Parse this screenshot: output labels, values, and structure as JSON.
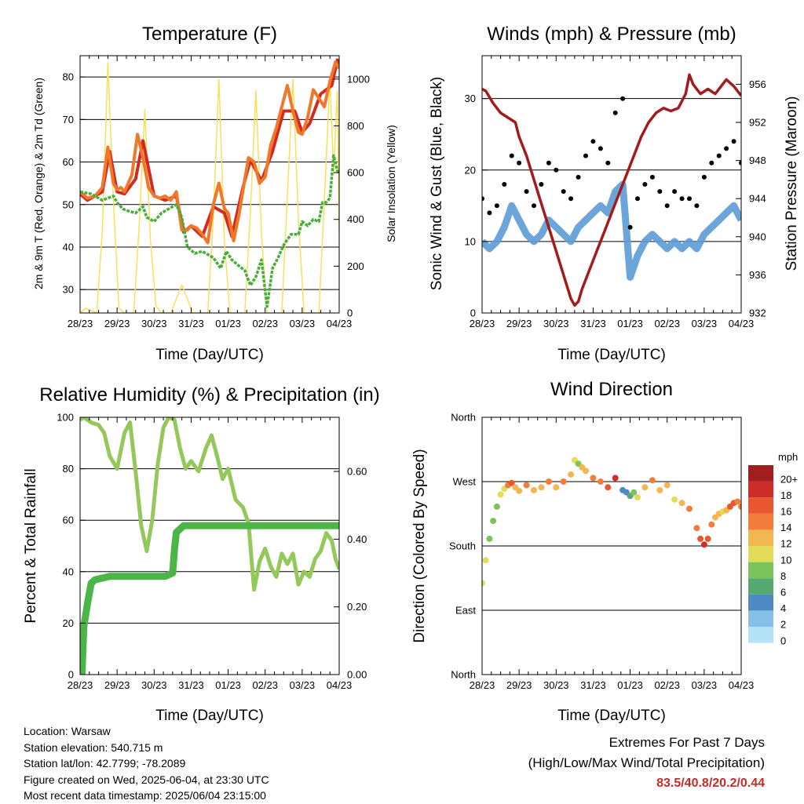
{
  "info": {
    "location": "Location: Warsaw",
    "elevation": "Station elevation: 540.715 m",
    "latlon": "Station lat/lon: 42.7799; -78.2089",
    "created": "Figure created on Wed, 2025-06-04, at 23:30 UTC",
    "recent": "Most recent data timestamp: 2025/06/04 23:15:00"
  },
  "extremes": {
    "title": "Extremes For Past 7 Days",
    "subtitle": "(High/Low/Max Wind/Total Precipitation)",
    "values": "83.5/40.8/20.2/0.44",
    "color": "#c42b2b"
  },
  "colors": {
    "temp_2m": "#d42a1e",
    "temp_9m": "#f0782a",
    "dewpoint": "#4bad3a",
    "solar": "#f7e05a",
    "wind": "#5b9bd5",
    "gust": "#000000",
    "pressure": "#a11d1d",
    "rh": "#94c85a",
    "precip": "#4bb548"
  },
  "chart_data": [
    {
      "id": "temperature",
      "type": "line",
      "title": "Temperature (F)",
      "xlabel": "Time (Day/UTC)",
      "ylabel": "2m & 9m T (Red, Orange) & 2m Td (Green)",
      "ylabel_right": "Solar Insolation (Yellow)",
      "x_ticks": [
        "28/23",
        "29/23",
        "30/23",
        "31/23",
        "01/23",
        "02/23",
        "03/23",
        "04/23"
      ],
      "xlim": [
        0,
        7
      ],
      "ylim": [
        24.5,
        85
      ],
      "y_ticks": [
        30,
        40,
        50,
        60,
        70,
        80
      ],
      "ylim_right": [
        0,
        1100
      ],
      "y_ticks_right": [
        0,
        200,
        400,
        600,
        800,
        1000
      ],
      "grid": "horizontal",
      "series": [
        {
          "axis": "left",
          "x": [
            0,
            0.2,
            0.4,
            0.6,
            0.75,
            0.9,
            1.0,
            1.1,
            1.2,
            1.4,
            1.55,
            1.7,
            1.85,
            2.0,
            2.15,
            2.3,
            2.45,
            2.6,
            2.75,
            2.9,
            3.0,
            3.15,
            3.3,
            3.45,
            3.6,
            3.75,
            3.9,
            4.0,
            4.15,
            4.3,
            4.45,
            4.55,
            4.7,
            4.85,
            5.0,
            5.15,
            5.3,
            5.45,
            5.6,
            5.75,
            5.9,
            6.0,
            6.15,
            6.3,
            6.45,
            6.6,
            6.75,
            6.9,
            7.0
          ],
          "values": [
            53,
            51.5,
            52,
            54,
            63.5,
            55,
            53.5,
            54,
            53,
            57,
            66.5,
            61,
            54,
            52,
            51.5,
            52,
            51,
            53,
            44,
            44,
            45,
            44.5,
            43,
            41,
            50,
            55,
            49,
            48,
            41.5,
            48,
            56,
            61,
            60,
            55,
            56.5,
            64,
            68,
            73,
            78,
            72,
            67,
            66.5,
            70.5,
            77,
            75,
            73,
            79,
            83.5,
            82
          ]
        },
        {
          "axis": "left",
          "x": [
            0,
            0.2,
            0.6,
            0.8,
            1.0,
            1.2,
            1.5,
            1.7,
            2.0,
            2.3,
            2.6,
            2.8,
            3.0,
            3.3,
            3.6,
            3.9,
            4.1,
            4.4,
            4.6,
            4.9,
            5.2,
            5.5,
            5.8,
            6.0,
            6.2,
            6.5,
            6.8,
            6.95,
            7.0
          ],
          "values": [
            52.5,
            51,
            53,
            62.5,
            53,
            52.5,
            56,
            65,
            52,
            51,
            52,
            43.5,
            45,
            42.5,
            49.5,
            48,
            42.5,
            54,
            60.5,
            55.5,
            62.5,
            72,
            72,
            67,
            69,
            76,
            78,
            84,
            82
          ]
        },
        {
          "axis": "left",
          "x": [
            0,
            0.3,
            0.6,
            0.9,
            1.0,
            1.15,
            1.3,
            1.5,
            1.7,
            1.8,
            2.0,
            2.2,
            2.4,
            2.6,
            2.75,
            2.9,
            3.1,
            3.3,
            3.6,
            3.8,
            3.95,
            4.1,
            4.3,
            4.45,
            4.6,
            4.75,
            4.9,
            5.05,
            5.2,
            5.35,
            5.5,
            5.7,
            5.9,
            6.0,
            6.15,
            6.3,
            6.45,
            6.55,
            6.65,
            6.75,
            6.85,
            6.95,
            7.0
          ],
          "values": [
            53,
            52.5,
            51,
            52,
            50.5,
            49,
            48.5,
            48,
            49.5,
            47,
            46,
            48,
            49,
            50,
            47,
            40,
            38.5,
            39,
            37.5,
            35,
            39,
            37,
            35.5,
            34.5,
            31,
            33,
            37,
            26,
            35,
            37.5,
            40.5,
            43,
            43,
            46,
            45,
            46.5,
            46,
            50.5,
            50.5,
            51.5,
            61.5,
            58,
            57.5
          ]
        },
        {
          "axis": "right",
          "x": [
            0,
            0.15,
            0.45,
            0.6,
            0.75,
            0.9,
            1.05,
            1.2,
            1.45,
            1.6,
            1.75,
            1.9,
            2.05,
            2.2,
            2.45,
            2.6,
            2.75,
            2.9,
            3.05,
            3.2,
            3.45,
            3.6,
            3.75,
            3.9,
            4.05,
            4.2,
            4.45,
            4.6,
            4.75,
            4.9,
            5.05,
            5.2,
            5.45,
            5.6,
            5.75,
            5.9,
            6.05,
            6.2,
            6.45,
            6.6,
            6.75,
            6.85,
            6.95,
            7.0
          ],
          "values": [
            0,
            20,
            0,
            350,
            1070,
            480,
            20,
            0,
            0,
            380,
            870,
            310,
            30,
            0,
            0,
            60,
            120,
            60,
            0,
            0,
            0,
            410,
            1000,
            300,
            0,
            0,
            0,
            430,
            950,
            340,
            0,
            0,
            0,
            500,
            1000,
            400,
            0,
            0,
            0,
            480,
            1000,
            600,
            950,
            350
          ]
        }
      ]
    },
    {
      "id": "winds",
      "type": "line",
      "title": "Winds (mph) & Pressure (mb)",
      "xlabel": "Time (Day/UTC)",
      "ylabel": "Sonic Wind & Gust (Blue, Black)",
      "ylabel_right": "Station Pressure (Maroon)",
      "x_ticks": [
        "28/23",
        "29/23",
        "30/23",
        "31/23",
        "01/23",
        "02/23",
        "03/23",
        "04/23"
      ],
      "xlim": [
        0,
        7
      ],
      "ylim": [
        0,
        36
      ],
      "y_ticks": [
        0,
        10,
        20,
        30
      ],
      "ylim_right": [
        932,
        959
      ],
      "y_ticks_right": [
        932,
        936,
        940,
        944,
        948,
        952,
        956
      ],
      "grid": "horizontal",
      "series": [
        {
          "axis": "left",
          "x": [
            0,
            0.2,
            0.4,
            0.6,
            0.8,
            1.0,
            1.2,
            1.4,
            1.6,
            1.8,
            2.0,
            2.2,
            2.4,
            2.6,
            2.8,
            3.0,
            3.2,
            3.4,
            3.6,
            3.8,
            4.0,
            4.2,
            4.4,
            4.6,
            4.8,
            5.0,
            5.2,
            5.4,
            5.6,
            5.8,
            6.0,
            6.2,
            6.4,
            6.6,
            6.8,
            7.0
          ],
          "values": [
            10,
            9,
            10,
            12,
            15,
            13,
            11,
            10,
            11,
            13,
            12,
            11,
            10,
            12,
            13,
            14,
            15,
            14,
            17,
            18,
            5,
            8,
            10,
            11,
            10,
            9,
            10,
            9,
            10,
            9,
            11,
            12,
            13,
            14,
            15,
            13
          ]
        },
        {
          "axis": "left",
          "x": [
            0,
            0.2,
            0.4,
            0.6,
            0.8,
            1.0,
            1.2,
            1.4,
            1.6,
            1.8,
            2.0,
            2.2,
            2.4,
            2.6,
            2.8,
            3.0,
            3.2,
            3.4,
            3.6,
            3.8,
            4.0,
            4.2,
            4.4,
            4.6,
            4.8,
            5.0,
            5.2,
            5.4,
            5.6,
            5.8,
            6.0,
            6.2,
            6.4,
            6.6,
            6.8,
            7.0
          ],
          "values": [
            16,
            14,
            15,
            18,
            22,
            21,
            17,
            15,
            18,
            21,
            20,
            17,
            16,
            19,
            22,
            24,
            23,
            21,
            28,
            30,
            12,
            16,
            18,
            19,
            17,
            15,
            17,
            16,
            16,
            15,
            19,
            21,
            22,
            23,
            24,
            21
          ]
        },
        {
          "axis": "right",
          "x": [
            0,
            0.1,
            0.3,
            0.5,
            0.7,
            0.9,
            1.0,
            1.2,
            1.4,
            1.6,
            1.8,
            2.0,
            2.2,
            2.4,
            2.5,
            2.6,
            2.7,
            2.9,
            3.1,
            3.3,
            3.5,
            3.7,
            3.9,
            4.1,
            4.3,
            4.5,
            4.7,
            4.9,
            5.1,
            5.3,
            5.5,
            5.6,
            5.7,
            5.9,
            6.1,
            6.3,
            6.5,
            6.6,
            6.8,
            7.0
          ],
          "values": [
            955.5,
            955.3,
            954,
            953,
            952.5,
            952,
            950.5,
            948.5,
            946,
            943.5,
            941,
            938.5,
            936,
            933.5,
            932.8,
            933.2,
            934.5,
            936.5,
            938.5,
            940.5,
            942.5,
            944.5,
            946.5,
            948.5,
            950.5,
            952,
            953,
            953.5,
            953.2,
            953.5,
            955,
            957,
            956,
            955,
            955.5,
            955,
            956,
            956.5,
            955.8,
            954.8
          ]
        }
      ]
    },
    {
      "id": "humidity",
      "type": "line",
      "title": "Relative Humidity (%) & Precipitation (in)",
      "xlabel": "Time (Day/UTC)",
      "ylabel": "Percent & Total Rainfall",
      "x_ticks": [
        "28/23",
        "29/23",
        "30/23",
        "31/23",
        "01/23",
        "02/23",
        "03/23",
        "04/23"
      ],
      "xlim": [
        0,
        7
      ],
      "ylim": [
        0,
        100
      ],
      "y_ticks": [
        0,
        20,
        40,
        60,
        80,
        100
      ],
      "ylim_right": [
        0,
        0.76
      ],
      "y_ticks_right": [
        "0.00",
        "0.20",
        "0.40",
        "0.60"
      ],
      "grid": "horizontal",
      "series": [
        {
          "axis": "left",
          "x": [
            0,
            0.1,
            0.3,
            0.5,
            0.65,
            0.8,
            1.0,
            1.2,
            1.35,
            1.5,
            1.65,
            1.8,
            1.95,
            2.1,
            2.25,
            2.4,
            2.55,
            2.7,
            2.85,
            3.0,
            3.2,
            3.4,
            3.55,
            3.7,
            3.85,
            4.0,
            4.2,
            4.4,
            4.55,
            4.7,
            4.85,
            5.0,
            5.15,
            5.3,
            5.45,
            5.6,
            5.75,
            5.9,
            6.05,
            6.2,
            6.35,
            6.5,
            6.65,
            6.8,
            6.9,
            7.0
          ],
          "values": [
            99,
            100,
            98,
            97,
            94,
            85,
            80,
            94,
            98,
            79,
            58,
            48,
            60,
            82,
            96,
            100,
            99,
            88,
            80,
            83,
            79,
            88,
            93,
            85,
            76,
            80,
            68,
            65,
            59,
            33,
            44,
            49,
            42,
            38,
            47,
            43,
            47,
            35,
            40,
            38,
            45,
            48,
            55,
            52,
            45,
            41
          ]
        },
        {
          "axis": "right",
          "x": [
            0,
            0.05,
            0.1,
            0.2,
            0.3,
            0.4,
            0.6,
            0.8,
            1.0,
            1.5,
            2.0,
            2.3,
            2.5,
            2.55,
            2.6,
            2.7,
            2.8,
            3.0,
            4.0,
            5.0,
            6.0,
            7.0
          ],
          "values": [
            0,
            0,
            0.14,
            0.21,
            0.27,
            0.28,
            0.285,
            0.29,
            0.29,
            0.29,
            0.29,
            0.29,
            0.3,
            0.37,
            0.42,
            0.43,
            0.44,
            0.44,
            0.44,
            0.44,
            0.44,
            0.44
          ]
        }
      ]
    },
    {
      "id": "wind_direction",
      "type": "scatter",
      "title": "Wind Direction",
      "xlabel": "Time (Day/UTC)",
      "ylabel": "Direction (Colored By Speed)",
      "x_ticks": [
        "28/23",
        "29/23",
        "30/23",
        "31/23",
        "01/23",
        "02/23",
        "03/23",
        "04/23"
      ],
      "xlim": [
        0,
        7
      ],
      "ylim": [
        0,
        360
      ],
      "y_tick_values": [
        0,
        90,
        180,
        270,
        360
      ],
      "y_ticks": [
        "North",
        "East",
        "South",
        "West",
        "North"
      ],
      "grid": "horizontal",
      "colorbar": {
        "title": "mph",
        "labels": [
          "0",
          "2",
          "4",
          "6",
          "8",
          "10",
          "12",
          "14",
          "16",
          "18",
          "20+"
        ],
        "colors": [
          "#b4e3f7",
          "#86c0e8",
          "#4f8ac4",
          "#55a872",
          "#7cc35c",
          "#e3dc5a",
          "#f4b650",
          "#f27c3a",
          "#e85730",
          "#cf2d2a",
          "#a11e1f"
        ]
      },
      "x": [
        0,
        0.1,
        0.2,
        0.3,
        0.4,
        0.5,
        0.6,
        0.7,
        0.8,
        0.9,
        1.0,
        1.2,
        1.4,
        1.6,
        1.8,
        2.0,
        2.2,
        2.4,
        2.5,
        2.6,
        2.7,
        2.8,
        3.0,
        3.2,
        3.4,
        3.6,
        3.8,
        3.9,
        4.0,
        4.1,
        4.2,
        4.4,
        4.6,
        4.8,
        5.0,
        5.2,
        5.4,
        5.6,
        5.8,
        5.9,
        6.0,
        6.1,
        6.2,
        6.3,
        6.4,
        6.5,
        6.6,
        6.7,
        6.8,
        6.9,
        7.0
      ],
      "values": [
        128,
        160,
        190,
        215,
        235,
        252,
        260,
        265,
        268,
        262,
        257,
        265,
        258,
        262,
        270,
        262,
        270,
        280,
        300,
        295,
        290,
        285,
        275,
        270,
        262,
        275,
        258,
        255,
        250,
        255,
        248,
        262,
        272,
        258,
        265,
        245,
        240,
        232,
        205,
        190,
        182,
        190,
        210,
        220,
        225,
        228,
        230,
        235,
        240,
        242,
        235
      ],
      "speeds": [
        9,
        9,
        8,
        8,
        8,
        9,
        10,
        13,
        15,
        12,
        11,
        13,
        12,
        11,
        14,
        12,
        13,
        11,
        9,
        8,
        11,
        12,
        14,
        13,
        15,
        18,
        4,
        3,
        5,
        8,
        10,
        12,
        13,
        12,
        11,
        10,
        12,
        13,
        14,
        16,
        17,
        15,
        14,
        12,
        11,
        10,
        12,
        15,
        16,
        14,
        13
      ]
    }
  ]
}
